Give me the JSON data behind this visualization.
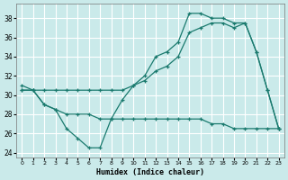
{
  "xlabel": "Humidex (Indice chaleur)",
  "bg_color": "#caeaea",
  "grid_color": "#b8dcdc",
  "line_color": "#1a7a6e",
  "xlim": [
    -0.5,
    23.5
  ],
  "ylim": [
    23.5,
    39.5
  ],
  "yticks": [
    24,
    26,
    28,
    30,
    32,
    34,
    36,
    38
  ],
  "xticks": [
    0,
    1,
    2,
    3,
    4,
    5,
    6,
    7,
    8,
    9,
    10,
    11,
    12,
    13,
    14,
    15,
    16,
    17,
    18,
    19,
    20,
    21,
    22,
    23
  ],
  "curve1_x": [
    0,
    1,
    2,
    3,
    4,
    5,
    6,
    7,
    8,
    9,
    10,
    11,
    12,
    13,
    14,
    15,
    16,
    17,
    18,
    19,
    20,
    21,
    22,
    23
  ],
  "curve1_y": [
    31.0,
    30.5,
    29.0,
    28.5,
    26.5,
    25.5,
    24.5,
    24.5,
    27.5,
    29.5,
    31.0,
    32.0,
    34.0,
    34.5,
    35.5,
    38.5,
    38.5,
    38.0,
    38.0,
    37.5,
    37.5,
    34.5,
    30.5,
    26.5
  ],
  "curve2_x": [
    0,
    1,
    2,
    3,
    4,
    5,
    6,
    7,
    8,
    9,
    10,
    11,
    12,
    13,
    14,
    15,
    16,
    17,
    18,
    19,
    20,
    21,
    22,
    23
  ],
  "curve2_y": [
    30.5,
    30.5,
    30.5,
    30.5,
    30.5,
    30.5,
    30.5,
    30.5,
    30.5,
    30.5,
    31.0,
    31.5,
    32.5,
    33.0,
    34.0,
    36.5,
    37.0,
    37.5,
    37.5,
    37.0,
    37.5,
    34.5,
    30.5,
    26.5
  ],
  "curve3_x": [
    0,
    1,
    2,
    3,
    4,
    5,
    6,
    7,
    8,
    9,
    10,
    11,
    12,
    13,
    14,
    15,
    16,
    17,
    18,
    19,
    20,
    21,
    22,
    23
  ],
  "curve3_y": [
    30.5,
    30.5,
    29.0,
    28.5,
    28.0,
    28.0,
    28.0,
    27.5,
    27.5,
    27.5,
    27.5,
    27.5,
    27.5,
    27.5,
    27.5,
    27.5,
    27.5,
    27.0,
    27.0,
    26.5,
    26.5,
    26.5,
    26.5,
    26.5
  ]
}
